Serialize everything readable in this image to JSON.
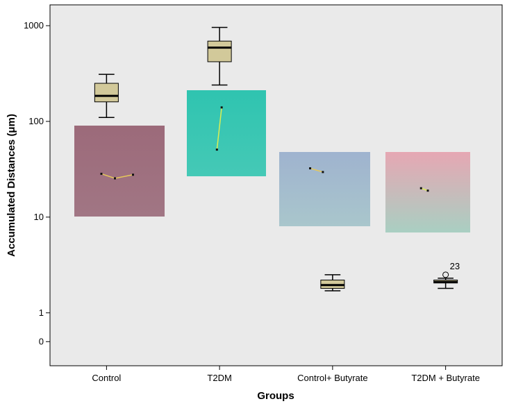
{
  "chart_data": {
    "type": "boxplot",
    "xlabel": "Groups",
    "ylabel": "Accumulated Distances (μm)",
    "y_scale": "log",
    "y_ticks": [
      {
        "value": 0.5,
        "label": "0"
      },
      {
        "value": 1,
        "label": "1"
      },
      {
        "value": 10,
        "label": "10"
      },
      {
        "value": 100,
        "label": "100"
      },
      {
        "value": 1000,
        "label": "1000"
      }
    ],
    "ylim": [
      0.28,
      1650
    ],
    "grid": false,
    "categories": [
      "Control",
      "T2DM",
      "Control+ Butyrate",
      "T2DM + Butyrate"
    ],
    "boxes": [
      {
        "category": "Control",
        "min": 110,
        "q1": 160,
        "median": 185,
        "q3": 250,
        "max": 310
      },
      {
        "category": "T2DM",
        "min": 240,
        "q1": 420,
        "median": 590,
        "q3": 690,
        "max": 960
      },
      {
        "category": "Control+ Butyrate",
        "min": 1.7,
        "q1": 1.8,
        "median": 1.95,
        "q3": 2.2,
        "max": 2.5
      },
      {
        "category": "T2DM + Butyrate",
        "min": 1.8,
        "q1": 2.05,
        "median": 2.1,
        "q3": 2.2,
        "max": 2.3
      }
    ],
    "outliers": [
      {
        "category": "T2DM + Butyrate",
        "value": 2.5,
        "label": "23"
      }
    ],
    "inset_images": [
      {
        "category": "Control",
        "color_top": "#9c6a7a",
        "color_bottom": "#a17684",
        "track": "#e6c85a"
      },
      {
        "category": "T2DM",
        "color_top": "#2fc4b0",
        "color_bottom": "#45c9b6",
        "track": "#dcef52"
      },
      {
        "category": "Control+ Butyrate",
        "color_top": "#9fb3cf",
        "color_bottom": "#a9c6cc",
        "track": "#e6c85a"
      },
      {
        "category": "T2DM + Butyrate",
        "color_top": "#e6a7b3",
        "color_bottom": "#a9cfc2",
        "track": "#dcef52"
      }
    ],
    "colors": {
      "plot_bg": "#eaeaea",
      "box_fill": "#d2c99a",
      "box_stroke": "#000000"
    }
  }
}
